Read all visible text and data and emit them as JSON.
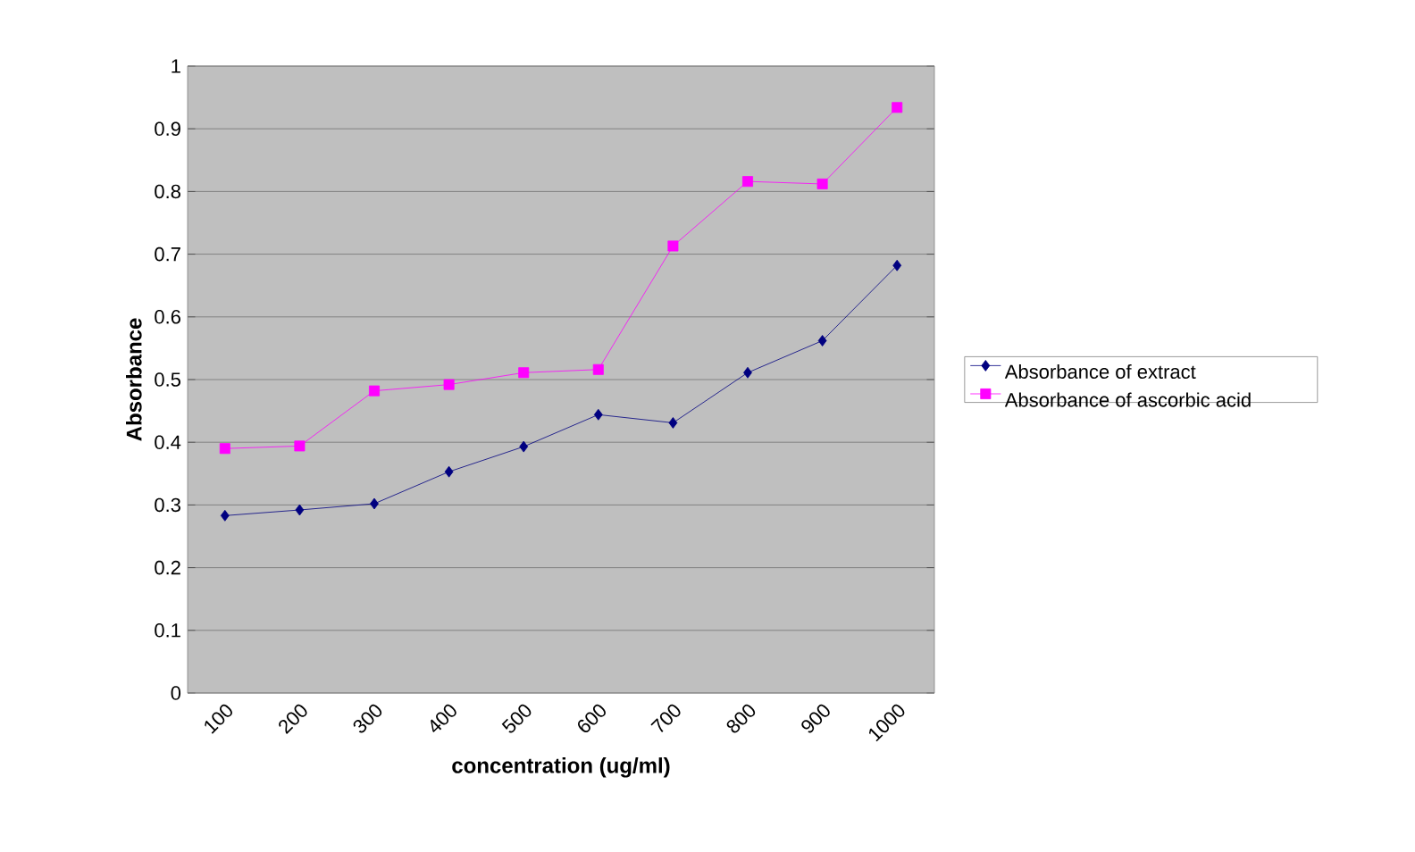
{
  "chart_data": {
    "type": "line",
    "xlabel": "concentration (ug/ml)",
    "ylabel": "Absorbance",
    "categories": [
      "100",
      "200",
      "300",
      "400",
      "500",
      "600",
      "700",
      "800",
      "900",
      "1000"
    ],
    "series": [
      {
        "name": "Absorbance of extract",
        "color": "#000080",
        "marker": "diamond",
        "values": [
          0.283,
          0.292,
          0.302,
          0.353,
          0.393,
          0.444,
          0.431,
          0.511,
          0.562,
          0.682
        ]
      },
      {
        "name": "Absorbance of ascorbic acid",
        "color": "#ff00ff",
        "marker": "square",
        "values": [
          0.39,
          0.394,
          0.482,
          0.492,
          0.511,
          0.516,
          0.713,
          0.816,
          0.812,
          0.934
        ]
      }
    ],
    "ylim": [
      0,
      1
    ],
    "yticks": [
      0,
      0.1,
      0.2,
      0.3,
      0.4,
      0.5,
      0.6,
      0.7,
      0.8,
      0.9,
      1
    ],
    "grid": "y",
    "legend": "right",
    "line_style": "solid"
  }
}
